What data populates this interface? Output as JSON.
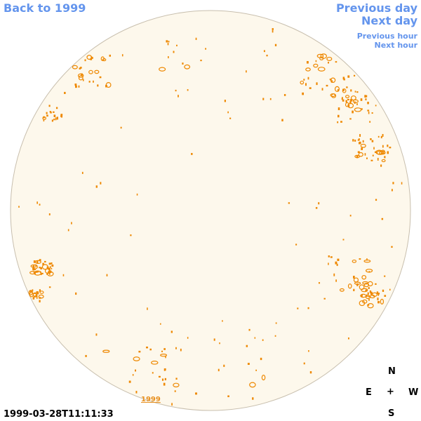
{
  "nav": {
    "back_label": "Back to 1999",
    "prev_day_label": "Previous day",
    "next_day_label": "Next day",
    "prev_hour_label": "Previous hour",
    "next_hour_label": "Next hour"
  },
  "disk": {
    "year_label": "1999",
    "fill_color": "#fdf8ec",
    "edge_color": "#c8bfae",
    "feature_color": "#ee8800"
  },
  "compass": {
    "n": "N",
    "e": "E",
    "center": "+",
    "w": "W",
    "s": "S"
  },
  "timestamp": "1999-03-28T11:11:33"
}
